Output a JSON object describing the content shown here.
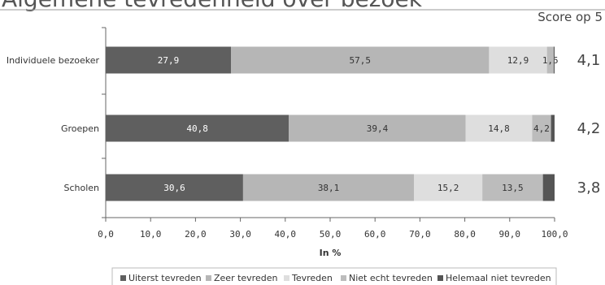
{
  "title": "Algemene tevredenheid over bezoek",
  "score_header": "Score op 5",
  "chart_data": {
    "type": "bar",
    "orientation": "horizontal",
    "stacked": true,
    "categories": [
      "Individuele bezoeker",
      "Groepen",
      "Scholen"
    ],
    "series": [
      {
        "name": "Uiterst tevreden",
        "values": [
          27.9,
          40.8,
          30.6
        ],
        "color": "#5f5f5f",
        "label_color": "#ffffff"
      },
      {
        "name": "Zeer tevreden",
        "values": [
          57.5,
          39.4,
          38.1
        ],
        "color": "#b6b6b6",
        "label_color": "#333333"
      },
      {
        "name": "Tevreden",
        "values": [
          12.9,
          14.8,
          15.2
        ],
        "color": "#dedede",
        "label_color": "#333333"
      },
      {
        "name": "Niet echt tevreden",
        "values": [
          1.5,
          4.2,
          13.5
        ],
        "color": "#bcbcbc",
        "label_color": "#333333"
      },
      {
        "name": "Helemaal niet tevreden",
        "values": [
          0.2,
          0.8,
          2.6
        ],
        "color": "#555555",
        "label_color": "#ffffff"
      }
    ],
    "data_labels": [
      [
        "27,9",
        "57,5",
        "12,9",
        "1,5",
        ""
      ],
      [
        "40,8",
        "39,4",
        "14,8",
        "4,2",
        ""
      ],
      [
        "30,6",
        "38,1",
        "15,2",
        "13,5",
        ""
      ]
    ],
    "scores": [
      "4,1",
      "4,2",
      "3,8"
    ],
    "xlim": [
      0,
      100
    ],
    "xticks": [
      "0,0",
      "10,0",
      "20,0",
      "30,0",
      "40,0",
      "50,0",
      "60,0",
      "70,0",
      "80,0",
      "90,0",
      "100,0"
    ],
    "xlabel": "In %",
    "legend_position": "bottom",
    "legend_labels": [
      "Uiterst tevreden",
      "Zeer tevreden",
      "Tevreden",
      "Niet echt tevreden",
      "Helemaal  niet tevreden"
    ]
  }
}
